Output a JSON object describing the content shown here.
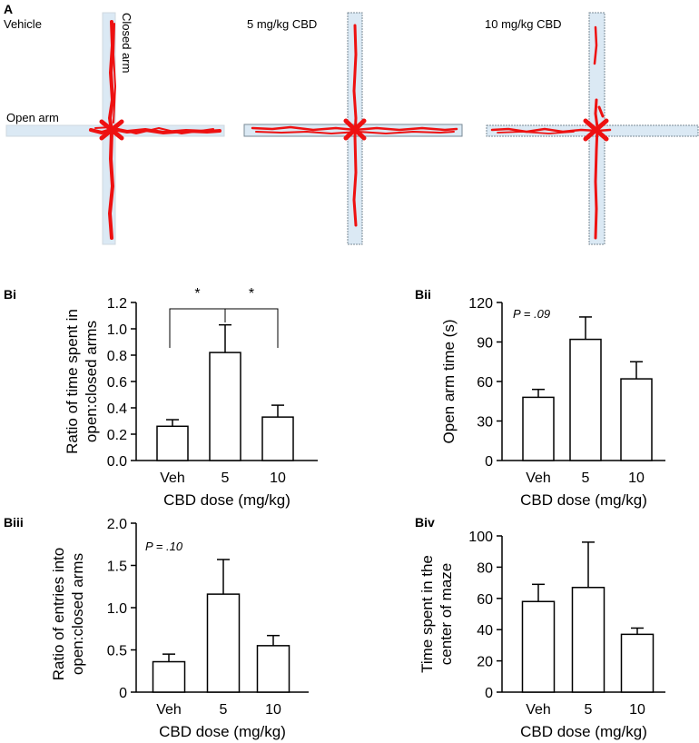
{
  "panel_a": {
    "label": "A",
    "mazes": [
      {
        "title": "Vehicle"
      },
      {
        "title": "5 mg/kg CBD"
      },
      {
        "title": "10 mg/kg CBD"
      }
    ],
    "closed_arm_label": "Closed arm",
    "open_arm_label": "Open arm",
    "track_color": "#ee1111",
    "arm_color": "#dbe9f4"
  },
  "chart_data": [
    {
      "type": "bar",
      "panel": "Bi",
      "categories": [
        "Veh",
        "5",
        "10"
      ],
      "values": [
        0.26,
        0.82,
        0.33
      ],
      "errors": [
        0.05,
        0.21,
        0.09
      ],
      "xlabel": "CBD dose (mg/kg)",
      "ylabel_lines": [
        "Ratio of time spent in",
        "open:closed arms"
      ],
      "ylim": [
        0,
        1.2
      ],
      "yticks": [
        "0.0",
        "0.2",
        "0.4",
        "0.6",
        "0.8",
        "1.0",
        "1.2"
      ],
      "significance": [
        {
          "from": 0,
          "to": 1,
          "label": "*"
        },
        {
          "from": 1,
          "to": 2,
          "label": "*"
        }
      ],
      "annotation": ""
    },
    {
      "type": "bar",
      "panel": "Bii",
      "categories": [
        "Veh",
        "5",
        "10"
      ],
      "values": [
        48,
        92,
        62
      ],
      "errors": [
        6,
        17,
        13
      ],
      "xlabel": "CBD dose (mg/kg)",
      "ylabel_lines": [
        "Open arm time (s)"
      ],
      "ylim": [
        0,
        120
      ],
      "yticks": [
        "0",
        "30",
        "60",
        "90",
        "120"
      ],
      "annotation": "P = .09"
    },
    {
      "type": "bar",
      "panel": "Biii",
      "categories": [
        "Veh",
        "5",
        "10"
      ],
      "values": [
        0.36,
        1.16,
        0.55
      ],
      "errors": [
        0.09,
        0.41,
        0.12
      ],
      "xlabel": "CBD dose (mg/kg)",
      "ylabel_lines": [
        "Ratio of entries into",
        "open:closed arms"
      ],
      "ylim": [
        0,
        2.0
      ],
      "yticks": [
        "0",
        "0.5",
        "1.0",
        "1.5",
        "2.0"
      ],
      "annotation": "P = .10"
    },
    {
      "type": "bar",
      "panel": "Biv",
      "categories": [
        "Veh",
        "5",
        "10"
      ],
      "values": [
        58,
        67,
        37
      ],
      "errors": [
        11,
        29,
        4
      ],
      "xlabel": "CBD dose (mg/kg)",
      "ylabel_lines": [
        "Time spent in the",
        "center of maze"
      ],
      "ylim": [
        0,
        100
      ],
      "yticks": [
        "0",
        "20",
        "40",
        "60",
        "80",
        "100"
      ],
      "annotation": ""
    }
  ]
}
